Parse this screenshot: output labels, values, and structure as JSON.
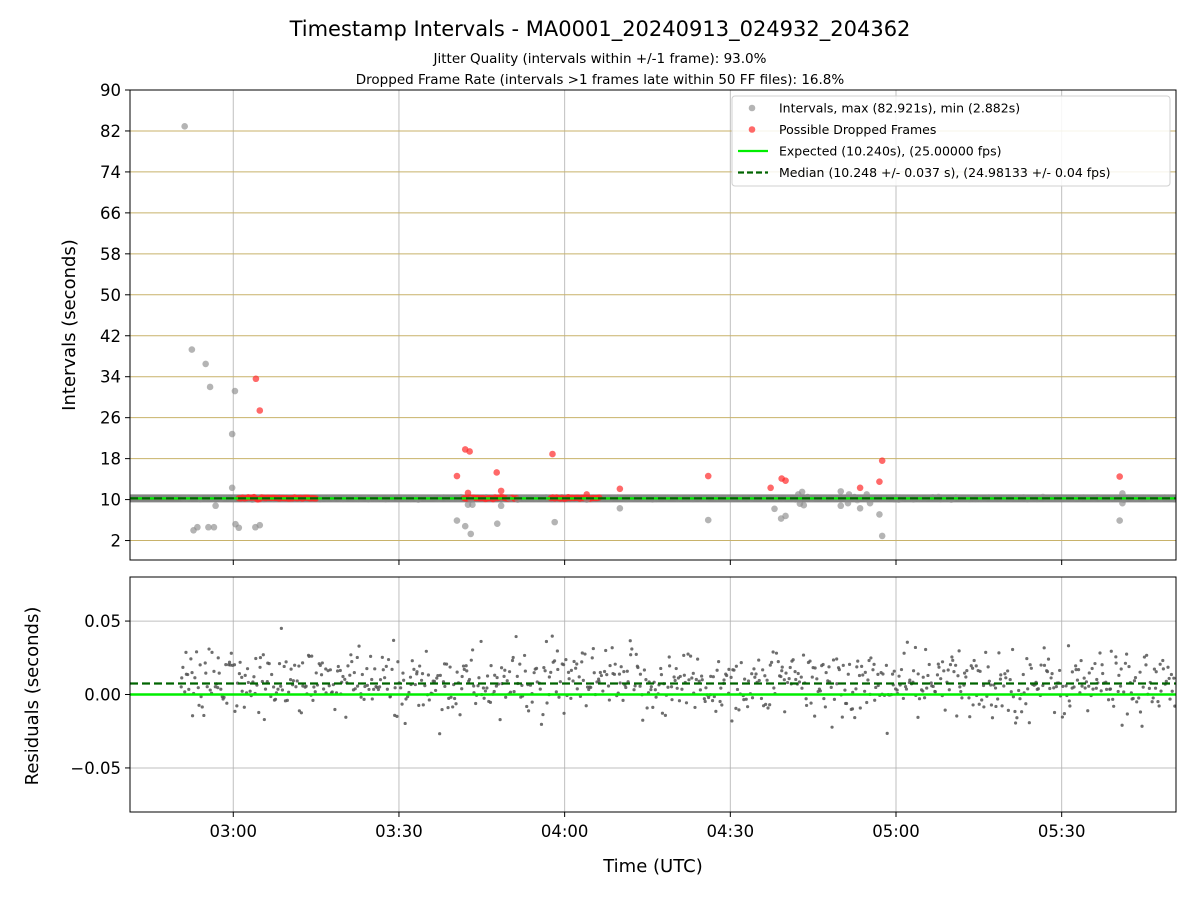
{
  "chart_data": {
    "type": "scatter",
    "title": "Timestamp Intervals - MA0001_20240913_024932_204362",
    "subtitle_lines": [
      "Jitter Quality (intervals within +/-1 frame): 93.0%",
      "Dropped Frame Rate (intervals >1 frames late within 50 FF files): 16.8%"
    ],
    "xlabel": "Time (UTC)",
    "x_tick_labels": [
      "03:00",
      "03:30",
      "04:00",
      "04:30",
      "05:00",
      "05:30"
    ],
    "x_tick_minutes": [
      180,
      210,
      240,
      270,
      300,
      330
    ],
    "xlim_minutes": [
      161.3,
      350.7
    ],
    "top_panel": {
      "ylabel": "Intervals (seconds)",
      "ylim": [
        -1.8,
        90
      ],
      "y_ticks": [
        2,
        10,
        18,
        26,
        34,
        42,
        50,
        58,
        66,
        74,
        82,
        90
      ],
      "expected_line_y": 10.24,
      "median_line_y": 10.248,
      "gray_points": [
        [
          171.2,
          82.9
        ],
        [
          172.5,
          39.3
        ],
        [
          175.0,
          36.5
        ],
        [
          175.8,
          32.0
        ],
        [
          179.8,
          22.8
        ],
        [
          180.3,
          31.2
        ],
        [
          179.8,
          12.3
        ],
        [
          176.8,
          8.8
        ],
        [
          180.4,
          5.2
        ],
        [
          181.0,
          4.5
        ],
        [
          172.8,
          4.0
        ],
        [
          173.5,
          4.6
        ],
        [
          175.5,
          4.6
        ],
        [
          176.5,
          4.6
        ],
        [
          184.0,
          4.6
        ],
        [
          184.8,
          5.0
        ],
        [
          171.0,
          10.2
        ],
        [
          171.6,
          10.2
        ],
        [
          174.0,
          10.2
        ],
        [
          177.8,
          10.2
        ],
        [
          213.5,
          10.0
        ],
        [
          223.0,
          10.0
        ],
        [
          230.0,
          10.2
        ],
        [
          231.5,
          10.0
        ],
        [
          220.5,
          5.9
        ],
        [
          222.0,
          4.8
        ],
        [
          223.0,
          3.3
        ],
        [
          222.5,
          9.0
        ],
        [
          223.3,
          9.0
        ],
        [
          227.8,
          5.3
        ],
        [
          228.5,
          8.8
        ],
        [
          238.2,
          5.6
        ],
        [
          244.0,
          10.0
        ],
        [
          250.0,
          8.3
        ],
        [
          266.0,
          6.0
        ],
        [
          278.0,
          8.2
        ],
        [
          279.2,
          6.3
        ],
        [
          280.0,
          6.8
        ],
        [
          282.3,
          11.0
        ],
        [
          282.6,
          9.2
        ],
        [
          283.0,
          11.5
        ],
        [
          283.3,
          8.9
        ],
        [
          284.0,
          10.5
        ],
        [
          290.0,
          11.6
        ],
        [
          290.0,
          8.8
        ],
        [
          291.3,
          9.3
        ],
        [
          291.5,
          11.0
        ],
        [
          292.5,
          10.5
        ],
        [
          293.5,
          8.3
        ],
        [
          294.7,
          11.0
        ],
        [
          295.3,
          9.3
        ],
        [
          297.0,
          7.1
        ],
        [
          297.5,
          2.9
        ],
        [
          300.5,
          10.0
        ],
        [
          310.0,
          10.0
        ],
        [
          340.5,
          5.9
        ],
        [
          341.0,
          9.3
        ],
        [
          341.0,
          11.2
        ]
      ],
      "dense_band": {
        "x_start": 161.3,
        "x_end": 350.7,
        "y": 10.24
      },
      "red_points": [
        [
          184.1,
          33.6
        ],
        [
          184.8,
          27.4
        ],
        [
          220.5,
          14.6
        ],
        [
          222.0,
          19.8
        ],
        [
          222.8,
          19.4
        ],
        [
          222.5,
          11.3
        ],
        [
          227.7,
          15.3
        ],
        [
          228.5,
          11.7
        ],
        [
          237.8,
          18.9
        ],
        [
          244.0,
          11.0
        ],
        [
          250.0,
          12.1
        ],
        [
          266.0,
          14.6
        ],
        [
          277.3,
          12.3
        ],
        [
          279.3,
          14.1
        ],
        [
          280.0,
          13.7
        ],
        [
          293.5,
          12.3
        ],
        [
          297.0,
          13.5
        ],
        [
          297.5,
          17.6
        ],
        [
          340.5,
          14.5
        ]
      ],
      "red_band_ranges": [
        [
          181.0,
          182.5
        ],
        [
          182.7,
          195.0
        ],
        [
          221.8,
          231.5
        ],
        [
          237.5,
          246.5
        ]
      ],
      "legend_placement": "top-right",
      "legend": [
        {
          "label": "Intervals, max (82.921s), min (2.882s)",
          "kind": "gray-dot"
        },
        {
          "label": "Possible Dropped Frames",
          "kind": "red-dot"
        },
        {
          "label": "Expected (10.240s), (25.00000 fps)",
          "kind": "green-line"
        },
        {
          "label": "Median (10.248 +/- 0.037 s), (24.98133 +/- 0.04 fps)",
          "kind": "darkgreen-dashed"
        }
      ]
    },
    "bottom_panel": {
      "ylabel": "Residuals (seconds)",
      "ylim": [
        -0.08,
        0.08
      ],
      "y_ticks": [
        -0.05,
        0.0,
        0.05
      ],
      "y_tick_labels": [
        "−0.05",
        "0.00",
        "0.05"
      ],
      "expected_line_y": 0.0,
      "median_line_y": 0.0075,
      "residual_center": 0.0075,
      "residual_spread": 0.012,
      "residual_x_start": 170.5,
      "residual_x_end": 350.7,
      "residual_count": 820
    },
    "colors": {
      "gray_point": "#8c8c8c",
      "red_point": "#ff2a2a",
      "expected": "#00ee00",
      "median": "#006400",
      "band": "#6e6e6e",
      "residual_point": "#555555"
    },
    "grid": true
  }
}
